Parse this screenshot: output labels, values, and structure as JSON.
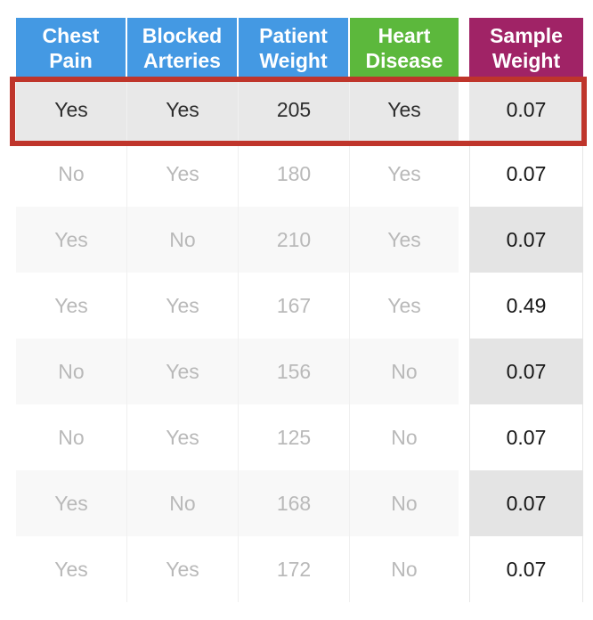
{
  "chart_data": {
    "type": "table",
    "columns": [
      "Chest Pain",
      "Blocked Arteries",
      "Patient Weight",
      "Heart Disease",
      "Sample Weight"
    ],
    "rows": [
      [
        "Yes",
        "Yes",
        "205",
        "Yes",
        "0.07"
      ],
      [
        "No",
        "Yes",
        "180",
        "Yes",
        "0.07"
      ],
      [
        "Yes",
        "No",
        "210",
        "Yes",
        "0.07"
      ],
      [
        "Yes",
        "Yes",
        "167",
        "Yes",
        "0.49"
      ],
      [
        "No",
        "Yes",
        "156",
        "No",
        "0.07"
      ],
      [
        "No",
        "Yes",
        "125",
        "No",
        "0.07"
      ],
      [
        "Yes",
        "No",
        "168",
        "No",
        "0.07"
      ],
      [
        "Yes",
        "Yes",
        "172",
        "No",
        "0.07"
      ]
    ],
    "highlighted_row_index": 0
  },
  "colors": {
    "header_blue": "#4499e3",
    "header_green": "#5cb83c",
    "header_magenta": "#a02366",
    "highlight_red": "#bf352b",
    "highlight_row_bg": "#e8e8e8",
    "alt_row_bg": "#f8f8f8",
    "sample_alt_bg": "#e4e4e4",
    "faded_text": "#b9b9b9",
    "dark_text": "#2e2e2e",
    "sample_text": "#161616"
  }
}
